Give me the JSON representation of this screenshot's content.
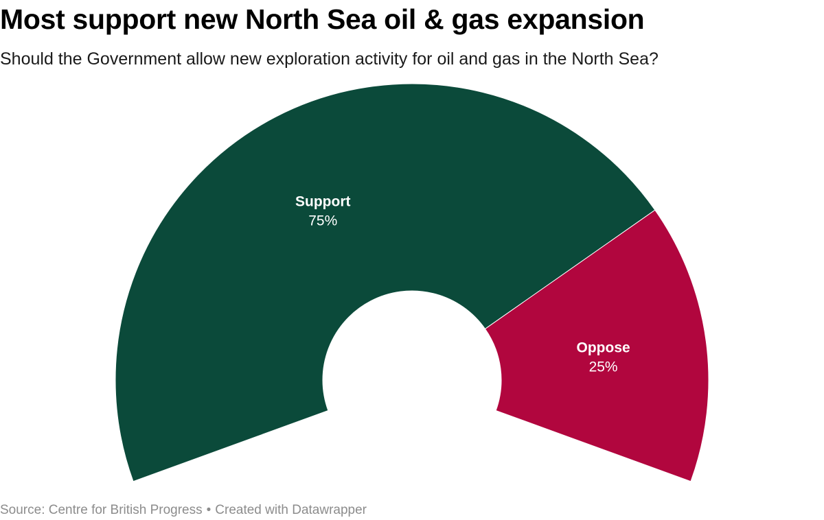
{
  "header": {
    "title": "Most support new North Sea oil & gas expansion",
    "subtitle": "Should the Government allow new exploration activity for oil and gas in the North Sea?"
  },
  "footer": {
    "source": "Source: Centre for British Progress",
    "separator": "•",
    "credit": "Created with Datawrapper"
  },
  "chart_data": {
    "type": "pie",
    "variant": "semi-donut",
    "title": "Most support new North Sea oil & gas expansion",
    "subtitle": "Should the Government allow new exploration activity for oil and gas in the North Sea?",
    "arc_span_degrees": 220,
    "unit": "%",
    "slices": [
      {
        "label": "Support",
        "value": 75,
        "value_label": "75%",
        "color": "#0b4a3a"
      },
      {
        "label": "Oppose",
        "value": 25,
        "value_label": "25%",
        "color": "#b1063e"
      }
    ],
    "legend": "none",
    "label_color": "#ffffff"
  }
}
